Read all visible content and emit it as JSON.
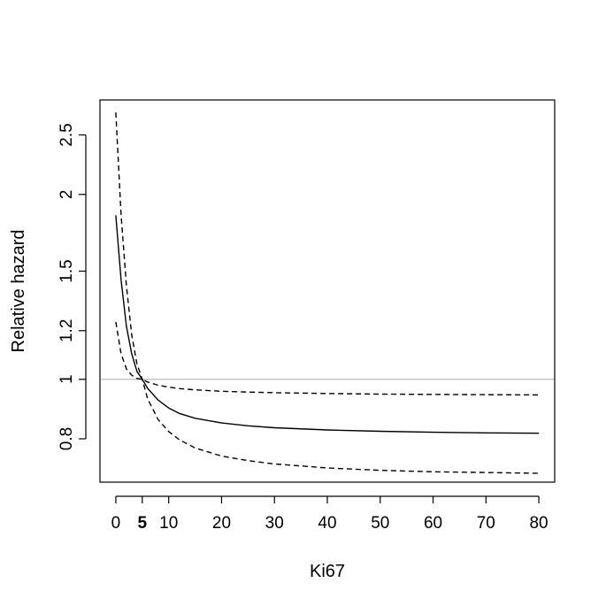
{
  "chart_data": {
    "type": "line",
    "xlabel": "Ki67",
    "ylabel": "Relative hazard",
    "xlim": [
      -3,
      83
    ],
    "ylim": [
      0.68,
      2.85
    ],
    "y_scale": "log",
    "x_ticks": [
      0,
      5,
      10,
      20,
      30,
      40,
      50,
      60,
      70,
      80
    ],
    "x_tick_labels": [
      "0",
      "5",
      "10",
      "20",
      "30",
      "40",
      "50",
      "60",
      "70",
      "80"
    ],
    "x_bold_tick": "5",
    "y_ticks": [
      0.8,
      1,
      1.2,
      1.5,
      2,
      2.5
    ],
    "y_tick_labels": [
      "0.8",
      "1",
      "1.2",
      "1.5",
      "2",
      "2.5"
    ],
    "reference_line": {
      "y": 1,
      "color": "#bdbdbd"
    },
    "x": [
      0,
      1,
      2,
      3,
      4,
      5,
      6,
      8,
      10,
      12,
      15,
      20,
      25,
      30,
      40,
      50,
      60,
      70,
      80
    ],
    "series": [
      {
        "style": "solid",
        "values": [
          1.85,
          1.45,
          1.22,
          1.1,
          1.03,
          1.0,
          0.967,
          0.925,
          0.898,
          0.88,
          0.864,
          0.849,
          0.84,
          0.834,
          0.827,
          0.823,
          0.82,
          0.818,
          0.817
        ]
      },
      {
        "style": "dashed",
        "values": [
          2.72,
          1.85,
          1.42,
          1.18,
          1.06,
          1.0,
          0.93,
          0.86,
          0.822,
          0.797,
          0.773,
          0.75,
          0.737,
          0.728,
          0.717,
          0.711,
          0.707,
          0.705,
          0.703
        ]
      },
      {
        "style": "dashed",
        "values": [
          1.24,
          1.1,
          1.04,
          1.015,
          1.003,
          1.0,
          0.99,
          0.978,
          0.971,
          0.966,
          0.961,
          0.956,
          0.953,
          0.951,
          0.948,
          0.946,
          0.945,
          0.944,
          0.943
        ]
      }
    ]
  }
}
